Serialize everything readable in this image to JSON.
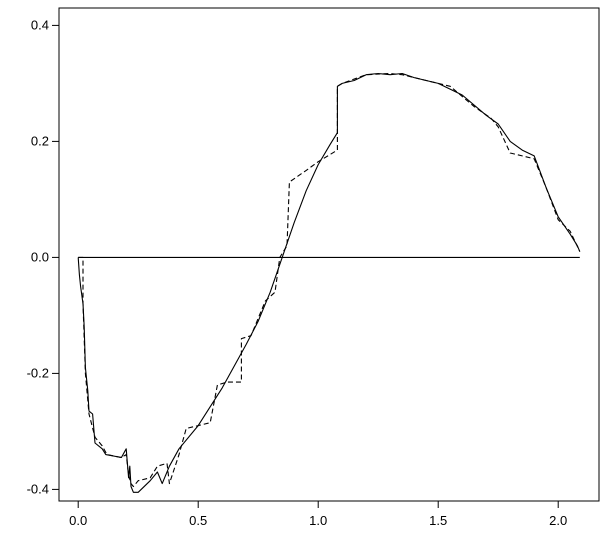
{
  "chart_data": {
    "type": "line",
    "title": "",
    "xlabel": "",
    "ylabel": "",
    "xlim": [
      -0.08,
      2.17
    ],
    "ylim": [
      -0.42,
      0.43
    ],
    "x_ticks": [
      {
        "value": 0.0,
        "label": "0.0"
      },
      {
        "value": 0.5,
        "label": "0.5"
      },
      {
        "value": 1.0,
        "label": "1.0"
      },
      {
        "value": 1.5,
        "label": "1.5"
      },
      {
        "value": 2.0,
        "label": "2.0"
      }
    ],
    "y_ticks": [
      {
        "value": -0.4,
        "label": "-0.4"
      },
      {
        "value": -0.2,
        "label": "-0.2"
      },
      {
        "value": 0.0,
        "label": "0.0"
      },
      {
        "value": 0.2,
        "label": "0.2"
      },
      {
        "value": 0.4,
        "label": "0.4"
      }
    ],
    "grid": false,
    "legend": "none",
    "series": [
      {
        "style": "solid",
        "color": "#000000",
        "points": [
          [
            0.0,
            0.0
          ],
          [
            2.09,
            0.0
          ]
        ]
      },
      {
        "style": "solid",
        "color": "#000000",
        "points": [
          [
            0.0,
            0.0
          ],
          [
            0.005,
            -0.03
          ],
          [
            0.01,
            -0.05
          ],
          [
            0.02,
            -0.08
          ],
          [
            0.025,
            -0.12
          ],
          [
            0.03,
            -0.19
          ],
          [
            0.035,
            -0.21
          ],
          [
            0.04,
            -0.23
          ],
          [
            0.045,
            -0.265
          ],
          [
            0.06,
            -0.27
          ],
          [
            0.07,
            -0.32
          ],
          [
            0.1,
            -0.33
          ],
          [
            0.115,
            -0.34
          ],
          [
            0.18,
            -0.345
          ],
          [
            0.2,
            -0.33
          ],
          [
            0.21,
            -0.38
          ],
          [
            0.215,
            -0.36
          ],
          [
            0.22,
            -0.395
          ],
          [
            0.23,
            -0.405
          ],
          [
            0.25,
            -0.405
          ],
          [
            0.3,
            -0.385
          ],
          [
            0.33,
            -0.37
          ],
          [
            0.35,
            -0.39
          ],
          [
            0.38,
            -0.36
          ],
          [
            0.42,
            -0.33
          ],
          [
            0.5,
            -0.29
          ],
          [
            0.6,
            -0.225
          ],
          [
            0.7,
            -0.15
          ],
          [
            0.75,
            -0.11
          ],
          [
            0.8,
            -0.06
          ],
          [
            0.85,
            0.0
          ],
          [
            0.9,
            0.06
          ],
          [
            0.95,
            0.115
          ],
          [
            1.0,
            0.16
          ],
          [
            1.05,
            0.195
          ],
          [
            1.08,
            0.215
          ],
          [
            1.08,
            0.295
          ],
          [
            1.1,
            0.3
          ],
          [
            1.15,
            0.305
          ],
          [
            1.2,
            0.315
          ],
          [
            1.25,
            0.317
          ],
          [
            1.3,
            0.315
          ],
          [
            1.35,
            0.317
          ],
          [
            1.4,
            0.31
          ],
          [
            1.5,
            0.3
          ],
          [
            1.6,
            0.28
          ],
          [
            1.7,
            0.245
          ],
          [
            1.75,
            0.23
          ],
          [
            1.8,
            0.2
          ],
          [
            1.85,
            0.185
          ],
          [
            1.9,
            0.175
          ],
          [
            1.95,
            0.12
          ],
          [
            2.0,
            0.07
          ],
          [
            2.05,
            0.04
          ],
          [
            2.08,
            0.02
          ],
          [
            2.09,
            0.01
          ]
        ]
      },
      {
        "style": "dashed",
        "color": "#000000",
        "points": [
          [
            0.0,
            0.0
          ],
          [
            0.02,
            0.0
          ],
          [
            0.02,
            -0.08
          ],
          [
            0.03,
            -0.2
          ],
          [
            0.045,
            -0.27
          ],
          [
            0.07,
            -0.31
          ],
          [
            0.1,
            -0.325
          ],
          [
            0.12,
            -0.34
          ],
          [
            0.18,
            -0.345
          ],
          [
            0.2,
            -0.34
          ],
          [
            0.21,
            -0.375
          ],
          [
            0.22,
            -0.39
          ],
          [
            0.23,
            -0.395
          ],
          [
            0.25,
            -0.385
          ],
          [
            0.3,
            -0.38
          ],
          [
            0.33,
            -0.36
          ],
          [
            0.37,
            -0.355
          ],
          [
            0.38,
            -0.39
          ],
          [
            0.42,
            -0.34
          ],
          [
            0.45,
            -0.295
          ],
          [
            0.5,
            -0.29
          ],
          [
            0.55,
            -0.285
          ],
          [
            0.58,
            -0.22
          ],
          [
            0.62,
            -0.215
          ],
          [
            0.68,
            -0.215
          ],
          [
            0.68,
            -0.14
          ],
          [
            0.72,
            -0.135
          ],
          [
            0.78,
            -0.075
          ],
          [
            0.82,
            -0.06
          ],
          [
            0.84,
            0.0
          ],
          [
            0.87,
            0.02
          ],
          [
            0.88,
            0.13
          ],
          [
            0.95,
            0.15
          ],
          [
            1.0,
            0.165
          ],
          [
            1.08,
            0.185
          ],
          [
            1.08,
            0.295
          ],
          [
            1.1,
            0.3
          ],
          [
            1.2,
            0.315
          ],
          [
            1.3,
            0.317
          ],
          [
            1.35,
            0.315
          ],
          [
            1.45,
            0.305
          ],
          [
            1.55,
            0.295
          ],
          [
            1.65,
            0.26
          ],
          [
            1.72,
            0.24
          ],
          [
            1.75,
            0.225
          ],
          [
            1.8,
            0.18
          ],
          [
            1.85,
            0.175
          ],
          [
            1.9,
            0.17
          ],
          [
            1.95,
            0.12
          ],
          [
            2.0,
            0.065
          ],
          [
            2.05,
            0.045
          ],
          [
            2.09,
            0.01
          ]
        ]
      }
    ]
  }
}
